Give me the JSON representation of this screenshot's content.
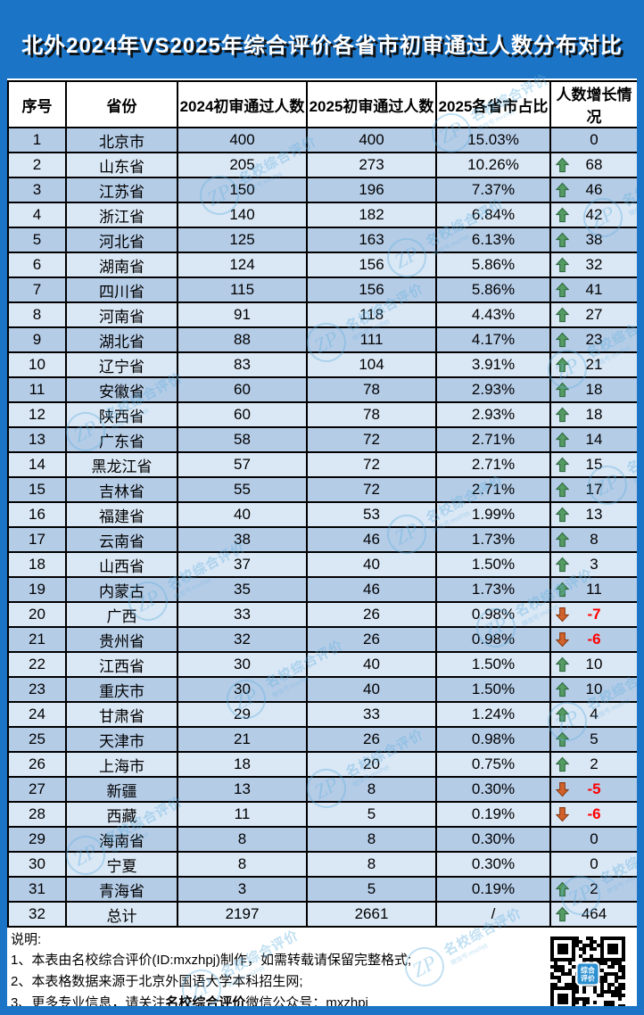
{
  "title": "北外2024年VS2025年综合评价各省市初审通过人数分布对比",
  "colors": {
    "frame_blue": "#1B74C6",
    "row_odd": "#B5CCE7",
    "row_even": "#DAE7F5",
    "up_green": "#569B63",
    "down_orange": "#D2622C",
    "negative_red": "#FF0000"
  },
  "chart_data": {
    "type": "table",
    "title": "北外2024年VS2025年综合评价各省市初审通过人数分布对比",
    "columns": [
      "序号",
      "省份",
      "2024初审通过人数",
      "2025初审通过人数",
      "2025各省市占比",
      "人数增长情况"
    ],
    "rows": [
      [
        1,
        "北京市",
        400,
        400,
        "15.03%",
        0
      ],
      [
        2,
        "山东省",
        205,
        273,
        "10.26%",
        68
      ],
      [
        3,
        "江苏省",
        150,
        196,
        "7.37%",
        46
      ],
      [
        4,
        "浙江省",
        140,
        182,
        "6.84%",
        42
      ],
      [
        5,
        "河北省",
        125,
        163,
        "6.13%",
        38
      ],
      [
        6,
        "湖南省",
        124,
        156,
        "5.86%",
        32
      ],
      [
        7,
        "四川省",
        115,
        156,
        "5.86%",
        41
      ],
      [
        8,
        "河南省",
        91,
        118,
        "4.43%",
        27
      ],
      [
        9,
        "湖北省",
        88,
        111,
        "4.17%",
        23
      ],
      [
        10,
        "辽宁省",
        83,
        104,
        "3.91%",
        21
      ],
      [
        11,
        "安徽省",
        60,
        78,
        "2.93%",
        18
      ],
      [
        12,
        "陕西省",
        60,
        78,
        "2.93%",
        18
      ],
      [
        13,
        "广东省",
        58,
        72,
        "2.71%",
        14
      ],
      [
        14,
        "黑龙江省",
        57,
        72,
        "2.71%",
        15
      ],
      [
        15,
        "吉林省",
        55,
        72,
        "2.71%",
        17
      ],
      [
        16,
        "福建省",
        40,
        53,
        "1.99%",
        13
      ],
      [
        17,
        "云南省",
        38,
        46,
        "1.73%",
        8
      ],
      [
        18,
        "山西省",
        37,
        40,
        "1.50%",
        3
      ],
      [
        19,
        "内蒙古",
        35,
        46,
        "1.73%",
        11
      ],
      [
        20,
        "广西",
        33,
        26,
        "0.98%",
        -7
      ],
      [
        21,
        "贵州省",
        32,
        26,
        "0.98%",
        -6
      ],
      [
        22,
        "江西省",
        30,
        40,
        "1.50%",
        10
      ],
      [
        23,
        "重庆市",
        30,
        40,
        "1.50%",
        10
      ],
      [
        24,
        "甘肃省",
        29,
        33,
        "1.24%",
        4
      ],
      [
        25,
        "天津市",
        21,
        26,
        "0.98%",
        5
      ],
      [
        26,
        "上海市",
        18,
        20,
        "0.75%",
        2
      ],
      [
        27,
        "新疆",
        13,
        8,
        "0.30%",
        -5
      ],
      [
        28,
        "西藏",
        11,
        5,
        "0.19%",
        -6
      ],
      [
        29,
        "海南省",
        8,
        8,
        "0.30%",
        0
      ],
      [
        30,
        "宁夏",
        8,
        8,
        "0.30%",
        0
      ],
      [
        31,
        "青海省",
        3,
        5,
        "0.19%",
        2
      ],
      [
        32,
        "总计",
        2197,
        2661,
        "/",
        464
      ]
    ]
  },
  "notes": {
    "heading": "说明:",
    "line1": "1、本表由名校综合评价(ID:mxzhpj)制作，如需转载请保留完整格式;",
    "line2": "2、本表格数据来源于北京外国语大学本科招生网;",
    "line3_pre": "3、更多专业信息，请关注",
    "line3_bold": "名校综合评价",
    "line3_post": "微信公众号：mxzhpj"
  },
  "watermark": {
    "zp": "ZP",
    "name": "名校综合评价",
    "sub": "微信号:mxzhpj"
  },
  "qr": {
    "badge_line1": "综合",
    "badge_line2": "评价"
  }
}
